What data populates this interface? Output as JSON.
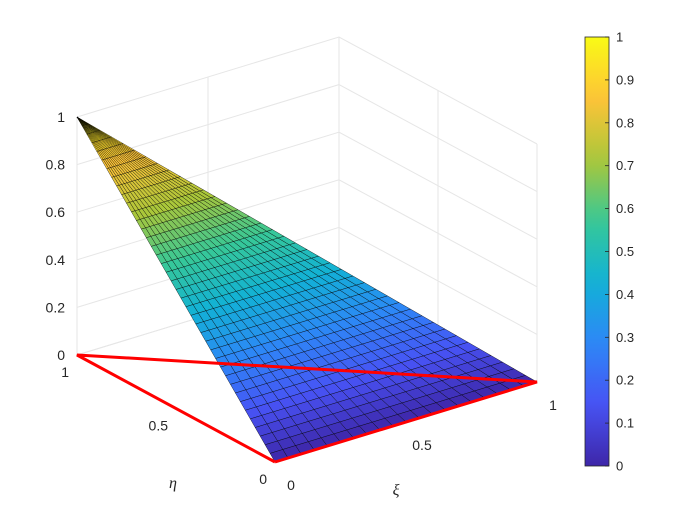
{
  "chart_data": {
    "type": "surface3d",
    "title": "",
    "xlabel": "ξ",
    "ylabel": "η",
    "zlabel": "",
    "xlim": [
      0,
      1
    ],
    "ylim": [
      0,
      1
    ],
    "zlim": [
      0,
      1
    ],
    "x_ticks": [
      "0",
      "0.5",
      "1"
    ],
    "y_ticks": [
      "0",
      "0.5",
      "1"
    ],
    "z_ticks": [
      "0",
      "0.2",
      "0.4",
      "0.6",
      "0.8",
      "1"
    ],
    "grid": true,
    "colormap": "parula",
    "colorbar": {
      "limits": [
        0,
        1
      ],
      "ticks": [
        "0",
        "0.1",
        "0.2",
        "0.3",
        "0.4",
        "0.5",
        "0.6",
        "0.7",
        "0.8",
        "0.9",
        "1"
      ]
    },
    "surface": {
      "description_function": "z = eta on triangle xi + eta <= 1",
      "vertices": [
        {
          "xi": 0,
          "eta": 0,
          "z": 0
        },
        {
          "xi": 1,
          "eta": 0,
          "z": 0
        },
        {
          "xi": 0,
          "eta": 1,
          "z": 1
        }
      ]
    },
    "domain_outline": {
      "color": "#ff0000",
      "points": [
        [
          0,
          0
        ],
        [
          1,
          0
        ],
        [
          0,
          1
        ],
        [
          0,
          0
        ]
      ]
    }
  }
}
